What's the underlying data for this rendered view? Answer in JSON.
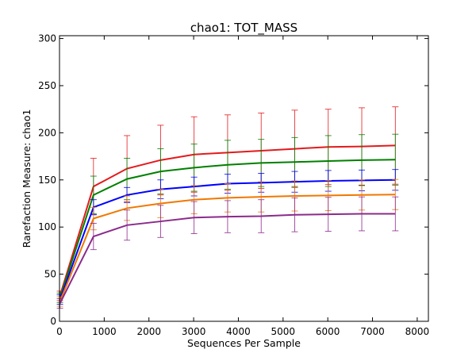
{
  "chart_data": {
    "type": "line",
    "title": "chao1: TOT_MASS",
    "xlabel": "Sequences Per Sample",
    "ylabel": "Rarefaction Measure: chao1",
    "xlim": [
      0,
      8250
    ],
    "ylim": [
      0,
      303
    ],
    "xticks": [
      0,
      1000,
      2000,
      3000,
      4000,
      5000,
      6000,
      7000,
      8000
    ],
    "yticks": [
      0,
      50,
      100,
      150,
      200,
      250,
      300
    ],
    "grid": false,
    "legend": "none",
    "x": [
      10,
      760,
      1510,
      2260,
      3010,
      3760,
      4510,
      5260,
      6010,
      6760,
      7510
    ],
    "series": [
      {
        "color": "#e41a1c",
        "values": [
          27,
          143,
          162,
          171,
          177,
          179,
          181,
          183,
          185,
          185.5,
          186.5
        ],
        "err": [
          5,
          30,
          35,
          37,
          40,
          40,
          40,
          41,
          40,
          41,
          41
        ]
      },
      {
        "color": "#008000",
        "values": [
          25,
          134,
          151,
          159,
          163,
          166,
          168,
          169,
          170,
          171,
          171.5
        ],
        "err": [
          5,
          20,
          22,
          24,
          25,
          26,
          25,
          26,
          27,
          27,
          27
        ]
      },
      {
        "color": "#0000ff",
        "values": [
          23,
          121,
          134,
          140,
          143,
          146,
          147,
          148,
          149,
          149.5,
          150
        ],
        "err": [
          5,
          8,
          8,
          10,
          10,
          10,
          10,
          11,
          11,
          11,
          11
        ]
      },
      {
        "color": "#f07800",
        "values": [
          21,
          109,
          120,
          125,
          129,
          131,
          132,
          133,
          133.5,
          134,
          134.5
        ],
        "err": [
          5,
          12,
          13,
          15,
          15,
          15,
          16,
          16,
          16,
          16,
          16
        ]
      },
      {
        "color": "#8b2a8b",
        "values": [
          19,
          90,
          102,
          106,
          110,
          111,
          111.5,
          113,
          113.5,
          114,
          114
        ],
        "err": [
          5,
          14,
          16,
          17,
          17,
          17,
          17.5,
          18,
          18,
          18,
          18
        ]
      }
    ]
  }
}
